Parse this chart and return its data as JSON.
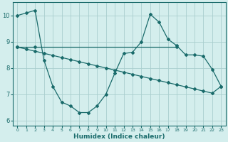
{
  "line1_x": [
    0,
    1,
    2,
    3,
    4,
    5,
    6,
    7,
    8,
    9,
    10,
    11,
    12,
    13,
    14,
    15,
    16,
    17,
    18,
    19,
    20,
    21,
    22,
    23
  ],
  "line1_y": [
    10.0,
    10.1,
    10.2,
    8.3,
    7.3,
    6.7,
    6.55,
    6.3,
    6.3,
    6.55,
    7.0,
    7.8,
    8.55,
    8.6,
    9.0,
    10.05,
    9.75,
    9.1,
    8.85,
    8.5,
    8.5,
    8.45,
    7.95,
    7.3
  ],
  "line2_x": [
    0,
    2,
    18
  ],
  "line2_y": [
    8.8,
    8.8,
    8.8
  ],
  "line3_x": [
    0,
    1,
    2,
    3,
    4,
    5,
    6,
    7,
    8,
    9,
    10,
    11,
    12,
    13,
    14,
    15,
    16,
    17,
    18,
    19,
    20,
    21,
    22,
    23
  ],
  "line3_y": [
    8.8,
    8.72,
    8.64,
    8.56,
    8.48,
    8.4,
    8.32,
    8.24,
    8.16,
    8.08,
    8.0,
    7.92,
    7.84,
    7.76,
    7.68,
    7.6,
    7.52,
    7.44,
    7.36,
    7.28,
    7.2,
    7.12,
    7.04,
    7.3
  ],
  "color": "#1a6b6b",
  "bg_color": "#d4eeed",
  "grid_color": "#aacece",
  "xlim": [
    -0.5,
    23.5
  ],
  "ylim": [
    5.8,
    10.5
  ],
  "yticks": [
    6,
    7,
    8,
    9,
    10
  ],
  "xticks": [
    0,
    1,
    2,
    3,
    4,
    5,
    6,
    7,
    8,
    9,
    10,
    11,
    12,
    13,
    14,
    15,
    16,
    17,
    18,
    19,
    20,
    21,
    22,
    23
  ],
  "xlabel": "Humidex (Indice chaleur)"
}
